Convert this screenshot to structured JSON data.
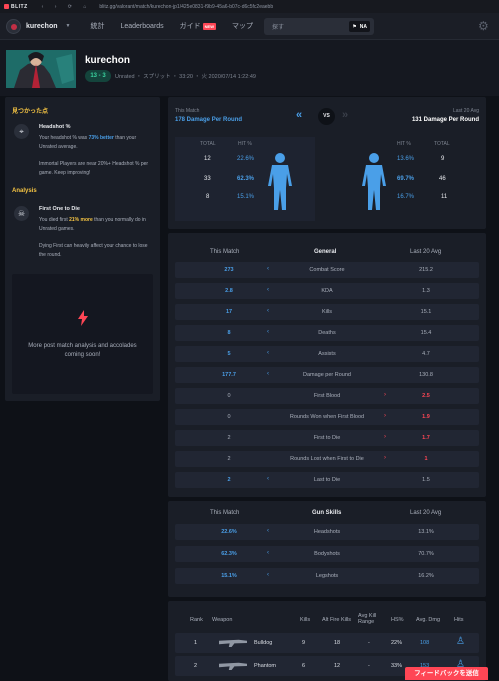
{
  "titlebar": {
    "logo": "BLITZ",
    "nav": "‹ › ⟳ ⌂",
    "url": "blitz.gg/valorant/match/kurechon-jp1/425e0831-f9b9-45a6-b07c-d6c5fc2eaebb"
  },
  "topnav": {
    "username": "kurechon",
    "items": [
      "統計",
      "Leaderboards",
      "ガイド",
      "マップ"
    ],
    "new_badge": "NEW",
    "search_placeholder": "探す",
    "region": "NA"
  },
  "header": {
    "player": "kurechon",
    "score": "13 - 3",
    "meta": "Unrated ・ スプリット ・ 33:20 ・ 火 2020/07/14 1:22:49"
  },
  "insights": {
    "found_title": "見つかった点",
    "headshot_title": "Headshot %",
    "headshot_pre": "Your headshot % was ",
    "headshot_hl": "73% better",
    "headshot_post": " than your Unrated average.",
    "headshot_note": "Immortal Players are near 20%+ Headshot % per game. Keep improving!",
    "analysis_title": "Analysis",
    "fbd_title": "First One to Die",
    "fbd_pre": "You died first ",
    "fbd_hl": "21% more",
    "fbd_post": " than you normally do in Unrated games.",
    "fbd_note": "Dying First can heavily affect your chance to lose the round.",
    "soon": "More post match analysis and accolades coming soon!"
  },
  "compare": {
    "this_match_label": "This Match",
    "this_match_value": "178 Damage Per Round",
    "last_label": "Last 20 Avg",
    "last_value": "131 Damage Per Round",
    "vs": "VS",
    "col_total": "TOTAL",
    "col_hit": "HIT %",
    "left": [
      {
        "total": "12",
        "hit": "22.6%"
      },
      {
        "total": "33",
        "hit": "62.3%"
      },
      {
        "total": "8",
        "hit": "15.1%"
      }
    ],
    "right": [
      {
        "hit": "13.6%",
        "total": "9"
      },
      {
        "hit": "69.7%",
        "total": "46"
      },
      {
        "hit": "16.7%",
        "total": "11"
      }
    ]
  },
  "general": {
    "this_match": "This Match",
    "title": "General",
    "last": "Last 20 Avg",
    "rows": [
      {
        "tv": "273",
        "label": "Combat Score",
        "lv": "215.2",
        "dir": "left"
      },
      {
        "tv": "2.8",
        "label": "KDA",
        "lv": "1.3",
        "dir": "left"
      },
      {
        "tv": "17",
        "label": "Kills",
        "lv": "15.1",
        "dir": "left"
      },
      {
        "tv": "8",
        "label": "Deaths",
        "lv": "15.4",
        "dir": "left"
      },
      {
        "tv": "5",
        "label": "Assists",
        "lv": "4.7",
        "dir": "left"
      },
      {
        "tv": "177.7",
        "label": "Damage per Round",
        "lv": "130.8",
        "dir": "left"
      },
      {
        "tv": "0",
        "label": "First Blood",
        "lv": "2.5",
        "dir": "right"
      },
      {
        "tv": "0",
        "label": "Rounds Won when First Blood",
        "lv": "1.9",
        "dir": "right"
      },
      {
        "tv": "2",
        "label": "First to Die",
        "lv": "1.7",
        "dir": "right"
      },
      {
        "tv": "2",
        "label": "Rounds Lost when First to Die",
        "lv": "1",
        "dir": "right"
      },
      {
        "tv": "2",
        "label": "Last to Die",
        "lv": "1.5",
        "dir": "left"
      }
    ]
  },
  "gun": {
    "this_match": "This Match",
    "title": "Gun Skills",
    "last": "Last 20 Avg",
    "rows": [
      {
        "tv": "22.6%",
        "label": "Headshots",
        "lv": "13.1%"
      },
      {
        "tv": "62.3%",
        "label": "Bodyshots",
        "lv": "70.7%"
      },
      {
        "tv": "15.1%",
        "label": "Legshots",
        "lv": "16.2%"
      }
    ]
  },
  "weapons": {
    "headers": {
      "rank": "Rank",
      "weapon": "Weapon",
      "kills": "Kills",
      "alt": "Alt Fire Kills",
      "range": "Avg Kill Range",
      "hs": "HS%",
      "dmg": "Avg. Dmg",
      "hits": "Hits"
    },
    "rows": [
      {
        "rank": "1",
        "name": "Bulldog",
        "kills": "9",
        "alt": "18",
        "range": "-",
        "hs": "22%",
        "dmg": "108"
      },
      {
        "rank": "2",
        "name": "Phantom",
        "kills": "6",
        "alt": "12",
        "range": "-",
        "hs": "33%",
        "dmg": "153"
      }
    ]
  },
  "feedback": "フィードバックを送信",
  "colors": {
    "accent_blue": "#4a9fe8",
    "accent_red": "#ff4655",
    "accent_yellow": "#f5c443",
    "win_green": "#3ad29f"
  }
}
